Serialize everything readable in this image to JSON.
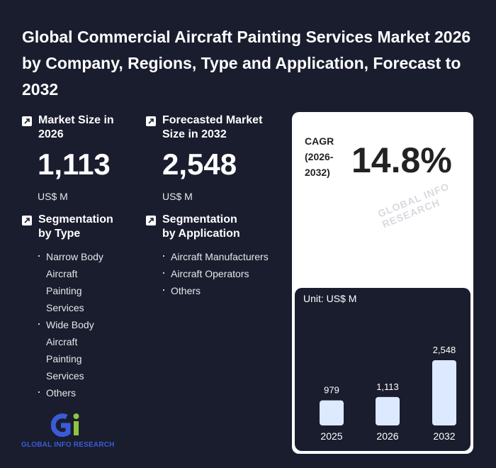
{
  "title": "Global Commercial Aircraft Painting Services Market 2026 by Company, Regions, Type and Application, Forecast to 2032",
  "market_size": {
    "label": "Market Size in 2026",
    "value": "1,113",
    "unit": "US$ M"
  },
  "forecast": {
    "label": "Forecasted Market Size in 2032",
    "value": "2,548",
    "unit": "US$ M"
  },
  "cagr": {
    "label": "CAGR (2026-2032)",
    "value": "14.8%"
  },
  "segmentation_type": {
    "label": "Segmentation by Type",
    "items": [
      "Narrow Body Aircraft Painting Services",
      "Wide Body Aircraft Painting Services",
      "Others"
    ]
  },
  "segmentation_application": {
    "label": "Segmentation by Application",
    "items": [
      "Aircraft Manufacturers",
      "Aircraft Operators",
      "Others"
    ]
  },
  "watermark": "GLOBAL INFO RESEARCH",
  "logo": {
    "text": "GLOBAL INFO RESEARCH",
    "letters": "Gi"
  },
  "chart_data": {
    "type": "bar",
    "unit_label": "Unit: US$ M",
    "categories": [
      "2025",
      "2026",
      "2032"
    ],
    "values": [
      979,
      1113,
      2548
    ],
    "value_labels": [
      "979",
      "1,113",
      "2,548"
    ],
    "bar_color": "#dde9ff"
  },
  "colors": {
    "background": "#1a1d2e",
    "card": "#ffffff",
    "logo_blue": "#3a5bd9",
    "logo_green": "#8dc63f"
  }
}
